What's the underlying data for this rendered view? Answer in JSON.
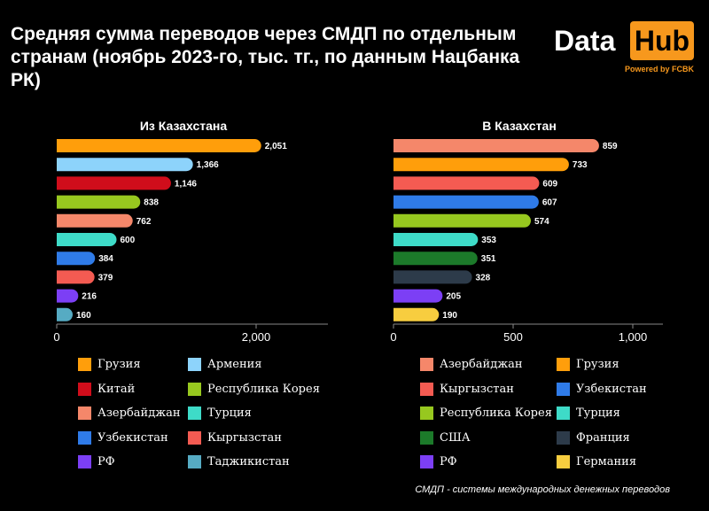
{
  "title": "Средняя сумма переводов через СМДП по отдельным странам (ноябрь 2023-го, тыс. тг., по данным Нацбанка РК)",
  "logo": {
    "data": "Data",
    "hub": "Hub",
    "powered": "Powered by FCBK"
  },
  "footnote": "СМДП - системы международных денежных переводов",
  "colors": {
    "background": "#000000",
    "axis": "#888888",
    "accent": "#f7981d"
  },
  "chart_data": [
    {
      "type": "bar",
      "orientation": "horizontal",
      "title": "Из Казахстана",
      "categories": [
        "Грузия",
        "Армения",
        "Китай",
        "Республика Корея",
        "Азербайджан",
        "Турция",
        "Узбекистан",
        "Кыргызстан",
        "РФ",
        "Таджикистан"
      ],
      "values": [
        2051,
        1366,
        1146,
        838,
        762,
        600,
        384,
        379,
        216,
        160
      ],
      "value_labels": [
        "2,051",
        "1,366",
        "1,146",
        "838",
        "762",
        "600",
        "384",
        "379",
        "216",
        "160"
      ],
      "colors": [
        "#ff9e0b",
        "#8dd3fb",
        "#d00d1b",
        "#97c81f",
        "#f5876a",
        "#3edbc8",
        "#2f7be8",
        "#f45b52",
        "#7c3ff5",
        "#56abc3"
      ],
      "xlim": [
        0,
        2700
      ],
      "xticks": [
        0,
        2000
      ],
      "xtick_labels": [
        "0",
        "2,000"
      ],
      "legend": "bottom",
      "grid": false
    },
    {
      "type": "bar",
      "orientation": "horizontal",
      "title": "В Казахстан",
      "categories": [
        "Азербайджан",
        "Грузия",
        "Кыргызстан",
        "Узбекистан",
        "Республика Корея",
        "Турция",
        "США",
        "Франция",
        "РФ",
        "Германия"
      ],
      "values": [
        859,
        733,
        609,
        607,
        574,
        353,
        351,
        328,
        205,
        190
      ],
      "value_labels": [
        "859",
        "733",
        "609",
        "607",
        "574",
        "353",
        "351",
        "328",
        "205",
        "190"
      ],
      "colors": [
        "#f5876a",
        "#ff9e0b",
        "#f45b52",
        "#2f7be8",
        "#97c81f",
        "#3edbc8",
        "#1c7a2a",
        "#2d3b4a",
        "#7c3ff5",
        "#f7cd3f"
      ],
      "xlim": [
        0,
        1120
      ],
      "xticks": [
        0,
        500,
        1000
      ],
      "xtick_labels": [
        "0",
        "500",
        "1,000"
      ],
      "legend": "bottom",
      "grid": false
    }
  ]
}
